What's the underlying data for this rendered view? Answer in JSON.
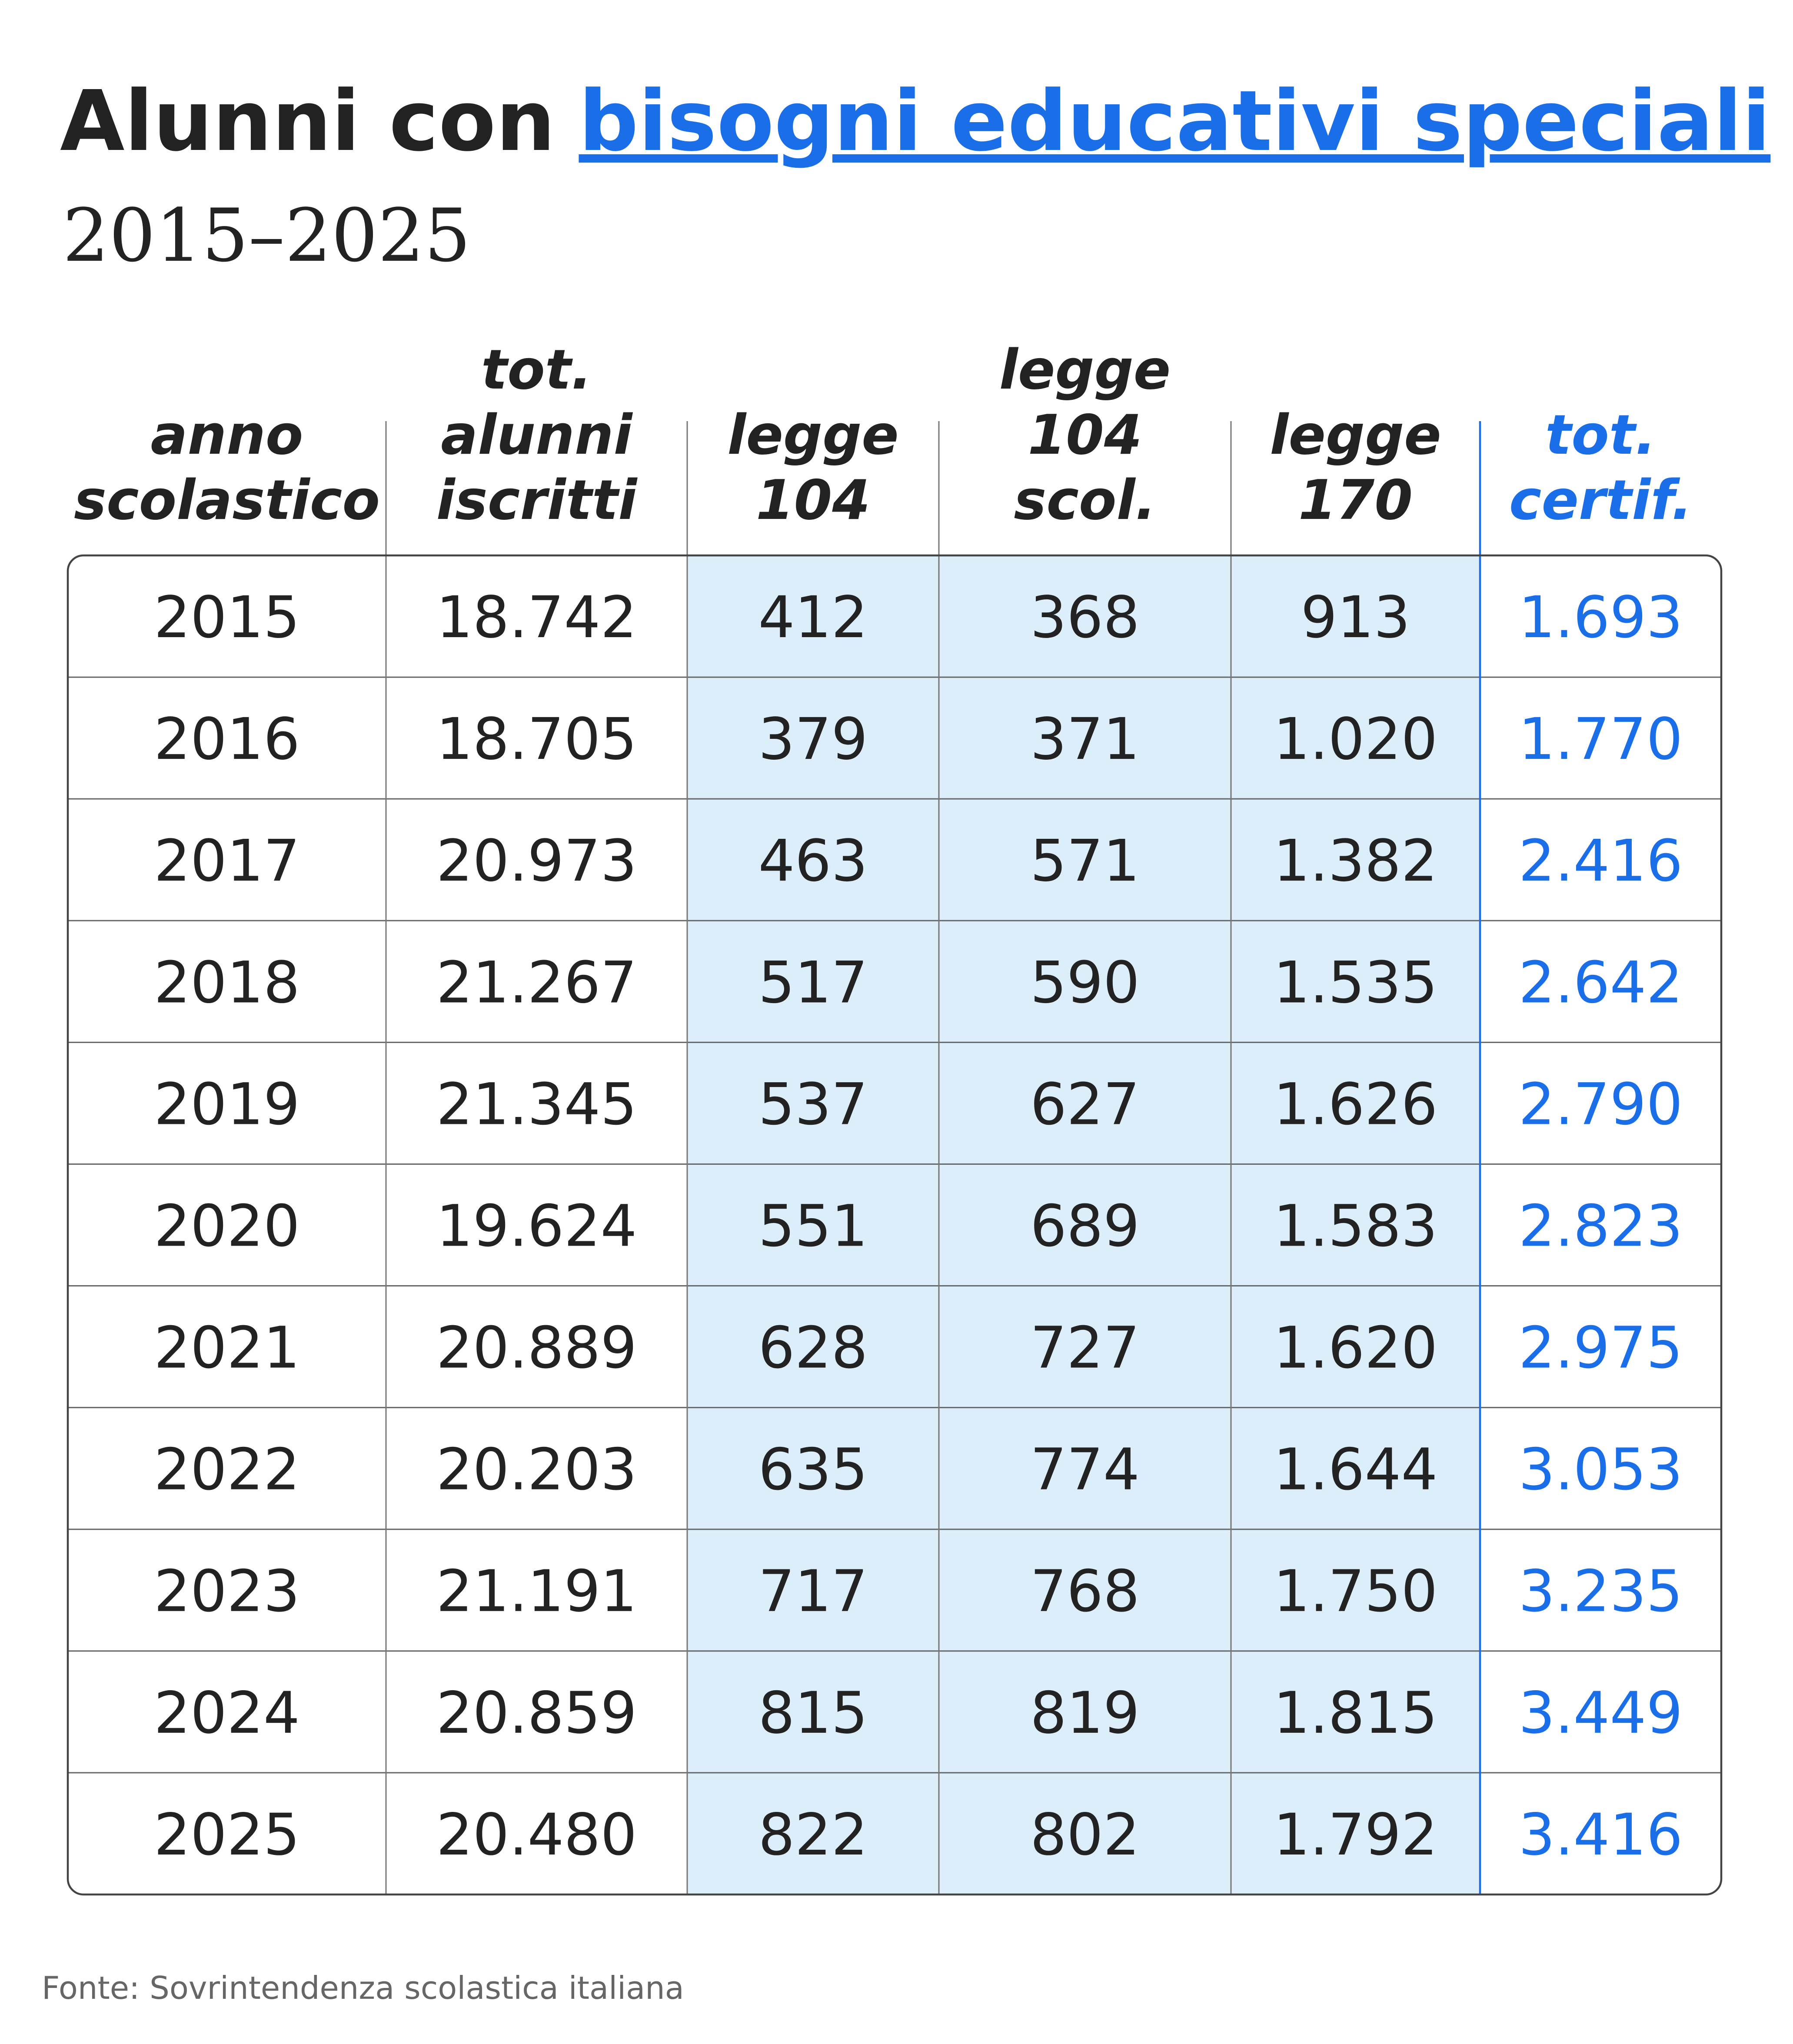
{
  "header": {
    "title_plain": "Alunni con",
    "title_link": "bisogni educativi speciali",
    "subtitle": "2015–2025"
  },
  "table": {
    "columns": [
      [
        "anno",
        "scolastico"
      ],
      [
        "tot.",
        "alunni",
        "iscritti"
      ],
      [
        "legge",
        "104"
      ],
      [
        "legge",
        "104",
        "scol."
      ],
      [
        "legge",
        "170"
      ],
      [
        "tot.",
        "certif."
      ]
    ],
    "rows": [
      [
        "2015",
        "18.742",
        "412",
        "368",
        "913",
        "1.693"
      ],
      [
        "2016",
        "18.705",
        "379",
        "371",
        "1.020",
        "1.770"
      ],
      [
        "2017",
        "20.973",
        "463",
        "571",
        "1.382",
        "2.416"
      ],
      [
        "2018",
        "21.267",
        "517",
        "590",
        "1.535",
        "2.642"
      ],
      [
        "2019",
        "21.345",
        "537",
        "627",
        "1.626",
        "2.790"
      ],
      [
        "2020",
        "19.624",
        "551",
        "689",
        "1.583",
        "2.823"
      ],
      [
        "2021",
        "20.889",
        "628",
        "727",
        "1.620",
        "2.975"
      ],
      [
        "2022",
        "20.203",
        "635",
        "774",
        "1.644",
        "3.053"
      ],
      [
        "2023",
        "21.191",
        "717",
        "768",
        "1.750",
        "3.235"
      ],
      [
        "2024",
        "20.859",
        "815",
        "819",
        "1.815",
        "3.449"
      ],
      [
        "2025",
        "20.480",
        "822",
        "802",
        "1.792",
        "3.416"
      ]
    ]
  },
  "footer": {
    "source": "Fonte: Sovrintendenza scolastica italiana"
  }
}
